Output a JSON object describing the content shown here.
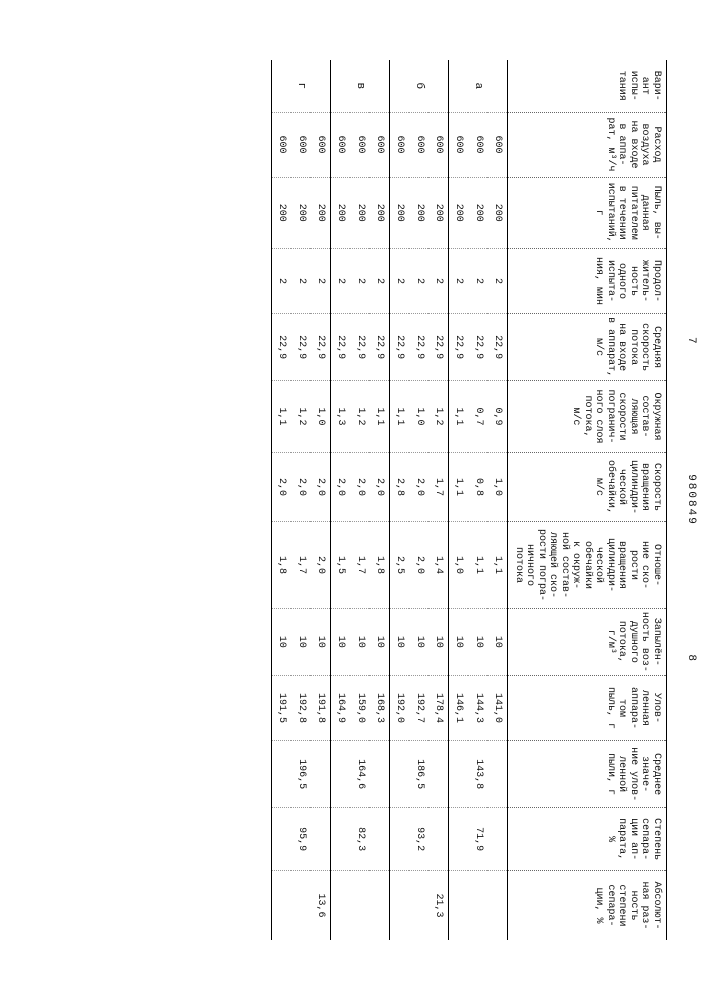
{
  "doc_number": "980849",
  "page_left": "7",
  "page_right": "8",
  "table": {
    "columns": [
      "Вари-\nант\nиспы-\nтания",
      "Расход\nвоздуха\nна входе\nв аппа-\nрат, м³/ч",
      "Пыль, вы-\nданная\nпитателем\nв течении\nиспытаний,\nг",
      "Продол-\nжитель-\nность\nодного\nиспыта-\nния, мин",
      "Средняя\nскорость\nпотока\nна входе\nв аппарат,\nм/с",
      "Окружная\nсостав-\nляющая\nскорости\nпогранич-\nного слоя\nпотока,\nм/с",
      "Скорость\nвращения\nцилиндри-\nческой\nобечайки,\nм/с",
      "Отноше-\nние ско-\nрости\nвращения\nцилиндри-\nческой\nобечайки\nк окруж-\nной состав-\nляющей ско-\nрости погра-\nничного\nпотока",
      "Запылён-\nность воз-\nдушного\nпотока,\nг/м³",
      "Улов-\nленная\nаппара-\nтом\nпыль, г",
      "Среднее\nзначе-\nние улов-\nленной\nпыли, г",
      "Степень\nсепара-\nции ап-\nпарата,\n%",
      "Абсолют-\nная раз-\nность\nстепени\nсепара-\nции, %"
    ],
    "groups": [
      {
        "variant": "а",
        "rows": [
          [
            "600",
            "200",
            "2",
            "22,9",
            "0,9",
            "1,0",
            "1,1",
            "10",
            "141,0"
          ],
          [
            "600",
            "200",
            "2",
            "22,9",
            "0,7",
            "0,8",
            "1,1",
            "10",
            "144,3"
          ],
          [
            "600",
            "200",
            "2",
            "22,9",
            "1,1",
            "1,1",
            "1,0",
            "10",
            "146,1"
          ]
        ],
        "mean_captured": "143,8",
        "sep_degree": "71,9",
        "abs_diff": ""
      },
      {
        "variant": "б",
        "rows": [
          [
            "600",
            "200",
            "2",
            "22,9",
            "1,2",
            "1,7",
            "1,4",
            "10",
            "178,4"
          ],
          [
            "600",
            "200",
            "2",
            "22,9",
            "1,0",
            "2,0",
            "2,0",
            "10",
            "192,7"
          ],
          [
            "600",
            "200",
            "2",
            "22,9",
            "1,1",
            "2,8",
            "2,5",
            "10",
            "192,0"
          ]
        ],
        "mean_captured": "186,5",
        "sep_degree": "93,2",
        "abs_diff": "21,3"
      },
      {
        "variant": "в",
        "rows": [
          [
            "600",
            "200",
            "2",
            "22,9",
            "1,1",
            "2,0",
            "1,8",
            "10",
            "168,3"
          ],
          [
            "600",
            "200",
            "2",
            "22,9",
            "1,2",
            "2,0",
            "1,7",
            "10",
            "159,0"
          ],
          [
            "600",
            "200",
            "2",
            "22,9",
            "1,3",
            "2,0",
            "1,5",
            "10",
            "164,9"
          ]
        ],
        "mean_captured": "164,6",
        "sep_degree": "82,3",
        "abs_diff": ""
      },
      {
        "variant": "г",
        "rows": [
          [
            "600",
            "200",
            "2",
            "22,9",
            "1,0",
            "2,0",
            "2,0",
            "10",
            "191,8"
          ],
          [
            "600",
            "200",
            "2",
            "22,9",
            "1,2",
            "2,0",
            "1,7",
            "10",
            "192,8"
          ],
          [
            "600",
            "200",
            "2",
            "22,9",
            "1,1",
            "2,0",
            "1,8",
            "10",
            "191,5"
          ]
        ],
        "mean_captured": "196,5",
        "sep_degree": "95,9",
        "abs_diff": "13,6"
      }
    ]
  },
  "style": {
    "font_family": "Courier New",
    "font_size_pt": 10,
    "header_font_size_pt": 10,
    "text_color": "#111111",
    "background": "#ffffff",
    "rule_color": "#000000",
    "dotted_color": "#888888"
  }
}
